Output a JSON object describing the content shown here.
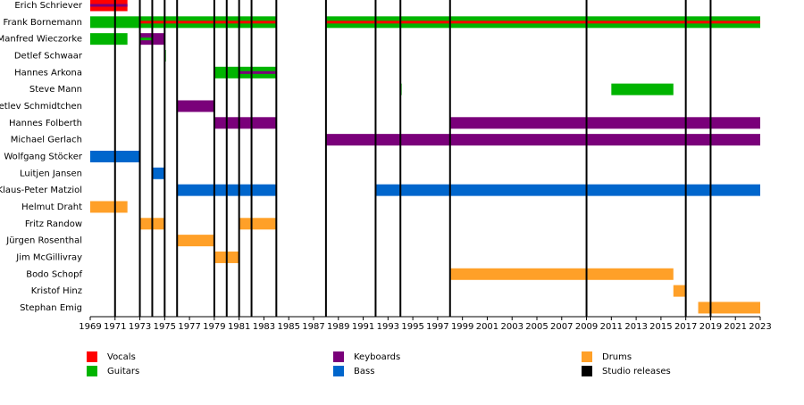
{
  "chart_data": {
    "type": "timeline",
    "xlim": [
      1969,
      2023
    ],
    "xticks": [
      1969,
      1971,
      1973,
      1975,
      1977,
      1979,
      1981,
      1983,
      1985,
      1987,
      1989,
      1991,
      1993,
      1995,
      1997,
      1999,
      2001,
      2003,
      2005,
      2007,
      2009,
      2011,
      2013,
      2015,
      2017,
      2019,
      2021,
      2023
    ],
    "roles": [
      {
        "name": "Vocals",
        "color": "#ff0000"
      },
      {
        "name": "Guitars",
        "color": "#00b400"
      },
      {
        "name": "Keyboards",
        "color": "#7a007a"
      },
      {
        "name": "Bass",
        "color": "#0066cc"
      },
      {
        "name": "Drums",
        "color": "#ffa028"
      }
    ],
    "releases_label": "Studio releases",
    "releases_color": "#000000",
    "releases": [
      1971,
      1973,
      1974,
      1975,
      1976,
      1979,
      1980,
      1981,
      1982,
      1984,
      1988,
      1992,
      1994,
      1998,
      2009,
      2017,
      2019
    ],
    "members": [
      {
        "name": "Erich Schriever",
        "periods": [
          {
            "role": "Vocals",
            "start": 1969,
            "end": 1972
          }
        ],
        "secondary": [
          {
            "role": "Keyboards",
            "start": 1969,
            "end": 1972
          }
        ]
      },
      {
        "name": "Frank Bornemann",
        "periods": [
          {
            "role": "Guitars",
            "start": 1969,
            "end": 1984
          },
          {
            "role": "Guitars",
            "start": 1988,
            "end": 2023
          }
        ],
        "secondary": [
          {
            "role": "Vocals",
            "start": 1973,
            "end": 1984
          },
          {
            "role": "Vocals",
            "start": 1988,
            "end": 2023
          }
        ]
      },
      {
        "name": "Manfred Wieczorke",
        "periods": [
          {
            "role": "Guitars",
            "start": 1969,
            "end": 1972
          },
          {
            "role": "Keyboards",
            "start": 1973,
            "end": 1975
          }
        ],
        "secondary": [
          {
            "role": "Guitars",
            "start": 1973,
            "end": 1974
          }
        ]
      },
      {
        "name": "Detlef Schwaar",
        "periods": [
          {
            "role": "Guitars",
            "start": 1975,
            "end": 1975.1
          }
        ],
        "secondary": []
      },
      {
        "name": "Hannes Arkona",
        "periods": [
          {
            "role": "Guitars",
            "start": 1979,
            "end": 1984
          }
        ],
        "secondary": [
          {
            "role": "Keyboards",
            "start": 1981,
            "end": 1984
          }
        ]
      },
      {
        "name": "Steve Mann",
        "periods": [
          {
            "role": "Guitars",
            "start": 1994,
            "end": 1994.1
          },
          {
            "role": "Guitars",
            "start": 2011,
            "end": 2016
          }
        ],
        "secondary": []
      },
      {
        "name": "Detlev Schmidtchen",
        "periods": [
          {
            "role": "Keyboards",
            "start": 1976,
            "end": 1979
          }
        ],
        "secondary": []
      },
      {
        "name": "Hannes Folberth",
        "periods": [
          {
            "role": "Keyboards",
            "start": 1979,
            "end": 1984
          },
          {
            "role": "Keyboards",
            "start": 1998,
            "end": 2023
          }
        ],
        "secondary": []
      },
      {
        "name": "Michael Gerlach",
        "periods": [
          {
            "role": "Keyboards",
            "start": 1988,
            "end": 2023
          }
        ],
        "secondary": []
      },
      {
        "name": "Wolfgang Stöcker",
        "periods": [
          {
            "role": "Bass",
            "start": 1969,
            "end": 1973
          }
        ],
        "secondary": []
      },
      {
        "name": "Luitjen Jansen",
        "periods": [
          {
            "role": "Bass",
            "start": 1974,
            "end": 1975
          }
        ],
        "secondary": []
      },
      {
        "name": "Klaus-Peter Matziol",
        "periods": [
          {
            "role": "Bass",
            "start": 1976,
            "end": 1984
          },
          {
            "role": "Bass",
            "start": 1992,
            "end": 2023
          }
        ],
        "secondary": []
      },
      {
        "name": "Helmut Draht",
        "periods": [
          {
            "role": "Drums",
            "start": 1969,
            "end": 1972
          }
        ],
        "secondary": []
      },
      {
        "name": "Fritz Randow",
        "periods": [
          {
            "role": "Drums",
            "start": 1973,
            "end": 1975
          },
          {
            "role": "Drums",
            "start": 1981,
            "end": 1984
          }
        ],
        "secondary": []
      },
      {
        "name": "Jürgen Rosenthal",
        "periods": [
          {
            "role": "Drums",
            "start": 1976,
            "end": 1979
          }
        ],
        "secondary": []
      },
      {
        "name": "Jim McGillivray",
        "periods": [
          {
            "role": "Drums",
            "start": 1979,
            "end": 1981
          }
        ],
        "secondary": []
      },
      {
        "name": "Bodo Schopf",
        "periods": [
          {
            "role": "Drums",
            "start": 1998,
            "end": 2016
          }
        ],
        "secondary": []
      },
      {
        "name": "Kristof Hinz",
        "periods": [
          {
            "role": "Drums",
            "start": 2016,
            "end": 2017
          }
        ],
        "secondary": []
      },
      {
        "name": "Stephan Emig",
        "periods": [
          {
            "role": "Drums",
            "start": 2018,
            "end": 2023
          }
        ],
        "secondary": []
      }
    ]
  }
}
